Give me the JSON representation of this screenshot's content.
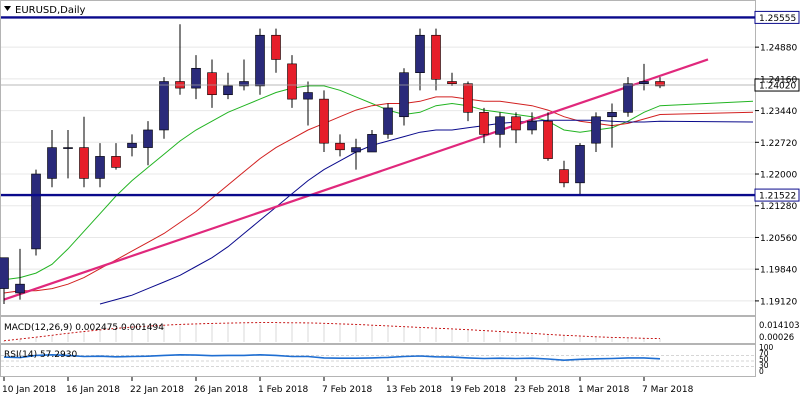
{
  "window": {
    "symbol_label": "EURUSD,Daily",
    "menu_icon": "triangle-down-icon"
  },
  "chart_data": {
    "type": "candlestick",
    "title": "EURUSD,Daily",
    "ylim": [
      1.188,
      1.2595
    ],
    "price_ticks": [
      "1.24880",
      "1.24160",
      "1.23440",
      "1.22720",
      "1.22000",
      "1.21280",
      "1.20560",
      "1.19840",
      "1.19120"
    ],
    "date_labels": [
      "10 Jan 2018",
      "16 Jan 2018",
      "22 Jan 2018",
      "26 Jan 2018",
      "1 Feb 2018",
      "7 Feb 2018",
      "13 Feb 2018",
      "19 Feb 2018",
      "23 Feb 2018",
      "1 Mar 2018",
      "7 Mar 2018"
    ],
    "candles": [
      {
        "o": 1.194,
        "h": 1.201,
        "l": 1.1905,
        "c": 1.201
      },
      {
        "o": 1.193,
        "h": 1.203,
        "l": 1.1915,
        "c": 1.195
      },
      {
        "o": 1.203,
        "h": 1.221,
        "l": 1.2015,
        "c": 1.22
      },
      {
        "o": 1.219,
        "h": 1.23,
        "l": 1.217,
        "c": 1.226
      },
      {
        "o": 1.226,
        "h": 1.23,
        "l": 1.219,
        "c": 1.226
      },
      {
        "o": 1.226,
        "h": 1.233,
        "l": 1.217,
        "c": 1.219
      },
      {
        "o": 1.219,
        "h": 1.227,
        "l": 1.217,
        "c": 1.224
      },
      {
        "o": 1.224,
        "h": 1.227,
        "l": 1.221,
        "c": 1.2215
      },
      {
        "o": 1.226,
        "h": 1.229,
        "l": 1.224,
        "c": 1.227
      },
      {
        "o": 1.226,
        "h": 1.232,
        "l": 1.222,
        "c": 1.23
      },
      {
        "o": 1.23,
        "h": 1.242,
        "l": 1.228,
        "c": 1.241
      },
      {
        "o": 1.241,
        "h": 1.254,
        "l": 1.238,
        "c": 1.2395
      },
      {
        "o": 1.2395,
        "h": 1.247,
        "l": 1.237,
        "c": 1.244
      },
      {
        "o": 1.243,
        "h": 1.246,
        "l": 1.235,
        "c": 1.238
      },
      {
        "o": 1.238,
        "h": 1.243,
        "l": 1.237,
        "c": 1.24
      },
      {
        "o": 1.24,
        "h": 1.246,
        "l": 1.239,
        "c": 1.241
      },
      {
        "o": 1.24,
        "h": 1.253,
        "l": 1.238,
        "c": 1.2515
      },
      {
        "o": 1.2515,
        "h": 1.253,
        "l": 1.243,
        "c": 1.246
      },
      {
        "o": 1.245,
        "h": 1.247,
        "l": 1.235,
        "c": 1.237
      },
      {
        "o": 1.237,
        "h": 1.241,
        "l": 1.231,
        "c": 1.2385
      },
      {
        "o": 1.237,
        "h": 1.239,
        "l": 1.225,
        "c": 1.227
      },
      {
        "o": 1.227,
        "h": 1.229,
        "l": 1.224,
        "c": 1.2255
      },
      {
        "o": 1.225,
        "h": 1.228,
        "l": 1.221,
        "c": 1.226
      },
      {
        "o": 1.225,
        "h": 1.23,
        "l": 1.225,
        "c": 1.229
      },
      {
        "o": 1.229,
        "h": 1.236,
        "l": 1.228,
        "c": 1.235
      },
      {
        "o": 1.233,
        "h": 1.244,
        "l": 1.231,
        "c": 1.243
      },
      {
        "o": 1.243,
        "h": 1.253,
        "l": 1.239,
        "c": 1.2515
      },
      {
        "o": 1.2515,
        "h": 1.253,
        "l": 1.239,
        "c": 1.2415
      },
      {
        "o": 1.241,
        "h": 1.243,
        "l": 1.24,
        "c": 1.2405
      },
      {
        "o": 1.2405,
        "h": 1.241,
        "l": 1.232,
        "c": 1.234
      },
      {
        "o": 1.234,
        "h": 1.235,
        "l": 1.227,
        "c": 1.229
      },
      {
        "o": 1.229,
        "h": 1.234,
        "l": 1.226,
        "c": 1.233
      },
      {
        "o": 1.233,
        "h": 1.234,
        "l": 1.227,
        "c": 1.23
      },
      {
        "o": 1.23,
        "h": 1.234,
        "l": 1.229,
        "c": 1.232
      },
      {
        "o": 1.232,
        "h": 1.234,
        "l": 1.223,
        "c": 1.2235
      },
      {
        "o": 1.221,
        "h": 1.223,
        "l": 1.217,
        "c": 1.218
      },
      {
        "o": 1.218,
        "h": 1.227,
        "l": 1.215,
        "c": 1.2265
      },
      {
        "o": 1.227,
        "h": 1.234,
        "l": 1.225,
        "c": 1.233
      },
      {
        "o": 1.233,
        "h": 1.236,
        "l": 1.226,
        "c": 1.234
      },
      {
        "o": 1.234,
        "h": 1.242,
        "l": 1.233,
        "c": 1.2405
      },
      {
        "o": 1.2405,
        "h": 1.245,
        "l": 1.239,
        "c": 1.241
      },
      {
        "o": 1.241,
        "h": 1.242,
        "l": 1.2395,
        "c": 1.24
      }
    ],
    "moving_averages": [
      {
        "color": "#22b422",
        "values": [
          1.196,
          1.1965,
          1.1975,
          1.1995,
          1.203,
          1.207,
          1.211,
          1.215,
          1.2185,
          1.2215,
          1.2245,
          1.2275,
          1.23,
          1.232,
          1.234,
          1.2355,
          1.237,
          1.2385,
          1.2395,
          1.24,
          1.24,
          1.239,
          1.2375,
          1.236,
          1.2345,
          1.2335,
          1.234,
          1.2355,
          1.236,
          1.2355,
          1.2345,
          1.234,
          1.2335,
          1.233,
          1.232,
          1.23,
          1.2295,
          1.23,
          1.2305,
          1.232,
          1.234,
          1.2355
        ]
      },
      {
        "color": "#d22020",
        "values": [
          1.193,
          1.1935,
          1.1935,
          1.194,
          1.195,
          1.1965,
          1.1985,
          1.2005,
          1.2025,
          1.2045,
          1.2065,
          1.209,
          1.2115,
          1.2145,
          1.2175,
          1.2205,
          1.2235,
          1.226,
          1.228,
          1.23,
          1.2315,
          1.233,
          1.2345,
          1.2355,
          1.236,
          1.236,
          1.2365,
          1.2375,
          1.2375,
          1.237,
          1.2365,
          1.2365,
          1.236,
          1.2355,
          1.2345,
          1.233,
          1.232,
          1.2315,
          1.231,
          1.2315,
          1.2325,
          1.2335
        ]
      },
      {
        "color": "#0a0a8c",
        "values": [
          null,
          null,
          null,
          null,
          null,
          null,
          1.1905,
          1.1915,
          1.1925,
          1.194,
          1.1955,
          1.197,
          1.199,
          1.201,
          1.2035,
          1.2065,
          1.2095,
          1.2125,
          1.2155,
          1.2185,
          1.221,
          1.223,
          1.225,
          1.2265,
          1.2275,
          1.2285,
          1.2295,
          1.23,
          1.23,
          1.2305,
          1.231,
          1.2315,
          1.2318,
          1.232,
          1.2322,
          1.2322,
          1.2322,
          1.2322,
          1.232,
          1.2318,
          1.2318,
          1.232
        ]
      }
    ],
    "trendline": {
      "color": "#e0287c",
      "from": {
        "bar": 0,
        "price": 1.1915
      },
      "to": {
        "bar": 44,
        "price": 1.246
      }
    },
    "horizontal_levels": [
      {
        "price": 1.25555,
        "label": "1.25555",
        "color": "#0a0a8c"
      },
      {
        "price": 1.21522,
        "label": "1.21522",
        "color": "#0a0a8c"
      }
    ],
    "current_price": {
      "price": 1.2402,
      "label": "1.24020"
    },
    "macd": {
      "label": "MACD(12,26,9) 0.002475 0.001494",
      "scale_labels": [
        "0.014103",
        "0.00026"
      ],
      "signal_values": [
        0.0008,
        0.002,
        0.0032,
        0.0045,
        0.0058,
        0.007,
        0.0081,
        0.0091,
        0.0099,
        0.0106,
        0.0112,
        0.0117,
        0.0121,
        0.0124,
        0.0126,
        0.0128,
        0.0129,
        0.0129,
        0.0128,
        0.0127,
        0.0125,
        0.0121,
        0.0117,
        0.0112,
        0.0107,
        0.0102,
        0.0097,
        0.0092,
        0.0087,
        0.0082,
        0.0076,
        0.007,
        0.0063,
        0.0057,
        0.0051,
        0.0045,
        0.004,
        0.0035,
        0.0031,
        0.0028,
        0.0025,
        0.0023
      ],
      "range": [
        0.0,
        0.016
      ]
    },
    "rsi": {
      "label": "RSI(14) 57.2930",
      "scale_labels": [
        "100",
        "70",
        "50",
        "30",
        "0"
      ],
      "values": [
        64,
        62,
        70,
        72,
        70,
        66,
        67,
        65,
        66,
        67,
        70,
        72,
        71,
        69,
        70,
        70,
        72,
        70,
        66,
        66,
        61,
        60,
        60,
        61,
        63,
        66,
        68,
        65,
        64,
        61,
        59,
        60,
        59,
        60,
        57,
        53,
        56,
        58,
        59,
        61,
        61,
        58
      ]
    }
  }
}
